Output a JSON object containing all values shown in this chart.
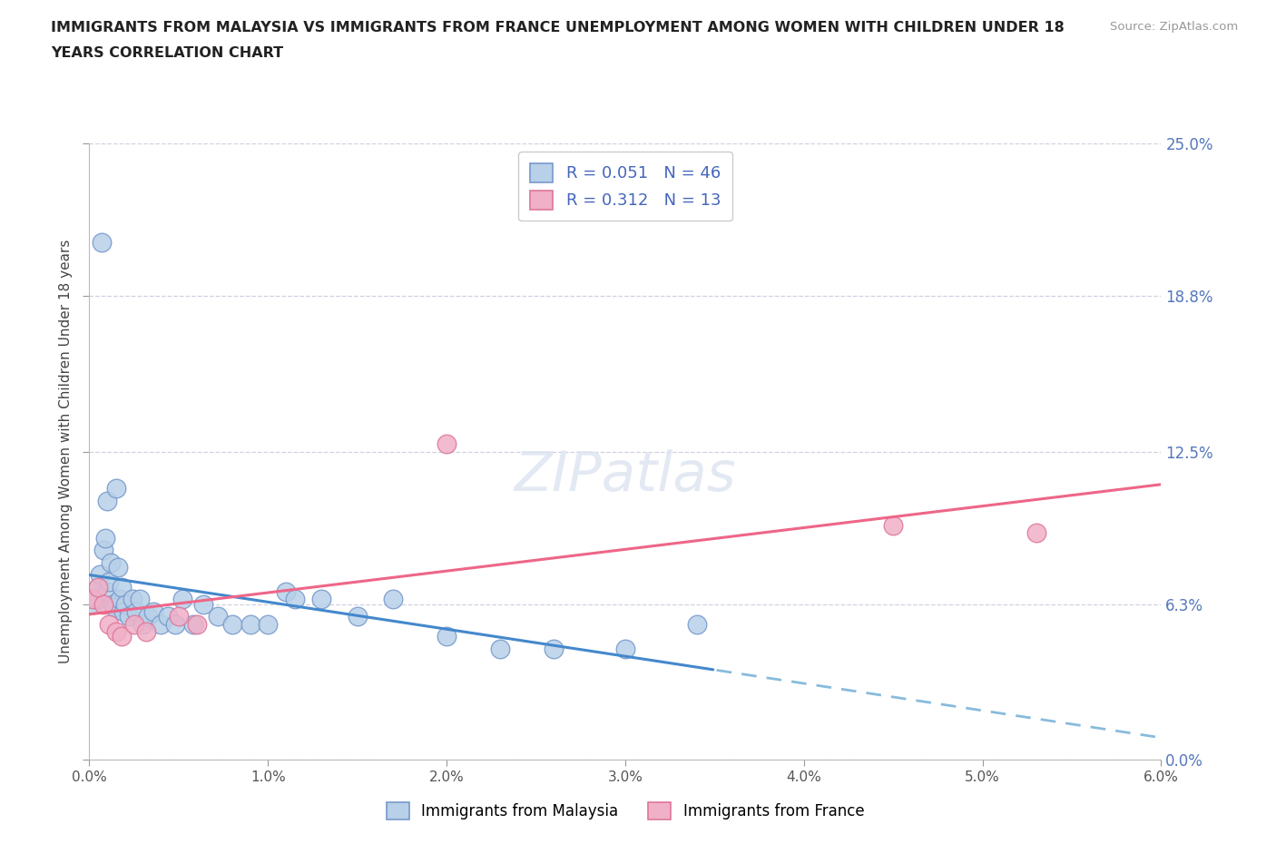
{
  "title_line1": "IMMIGRANTS FROM MALAYSIA VS IMMIGRANTS FROM FRANCE UNEMPLOYMENT AMONG WOMEN WITH CHILDREN UNDER 18 YEARS",
  "title_line2": "YEARS CORRELATION CHART",
  "source": "Source: ZipAtlas.com",
  "ylabel": "Unemployment Among Women with Children Under 18 years",
  "ytick_labels": [
    "0.0%",
    "6.3%",
    "12.5%",
    "18.8%",
    "25.0%"
  ],
  "ytick_values": [
    0.0,
    6.3,
    12.5,
    18.8,
    25.0
  ],
  "xtick_values": [
    0.0,
    1.0,
    2.0,
    3.0,
    4.0,
    5.0,
    6.0
  ],
  "xlim": [
    0.0,
    6.0
  ],
  "ylim": [
    0.0,
    25.0
  ],
  "malaysia_fill_color": "#b8d0e8",
  "malaysia_edge_color": "#7799cc",
  "france_fill_color": "#f0b0c8",
  "france_edge_color": "#dd7799",
  "malaysia_line_color": "#4488cc",
  "malaysia_line_dashed_color": "#88bbdd",
  "france_line_color": "#ee6688",
  "r_malaysia": 0.051,
  "n_malaysia": 46,
  "r_france": 0.312,
  "n_france": 13,
  "legend_color": "#4466bb",
  "watermark_text": "ZIPatlas",
  "bg_color": "#ffffff",
  "grid_color": "#ccccdd",
  "malaysia_x": [
    0.02,
    0.04,
    0.05,
    0.06,
    0.08,
    0.09,
    0.1,
    0.1,
    0.11,
    0.12,
    0.13,
    0.14,
    0.15,
    0.16,
    0.17,
    0.18,
    0.19,
    0.2,
    0.22,
    0.24,
    0.26,
    0.28,
    0.3,
    0.33,
    0.36,
    0.4,
    0.44,
    0.48,
    0.52,
    0.58,
    0.64,
    0.72,
    0.8,
    0.9,
    1.0,
    1.1,
    1.3,
    1.5,
    1.7,
    2.0,
    2.3,
    2.6,
    3.0,
    3.4,
    0.07,
    1.15
  ],
  "malaysia_y": [
    6.3,
    6.5,
    7.0,
    7.5,
    8.5,
    9.0,
    10.5,
    6.8,
    7.2,
    8.0,
    6.3,
    6.2,
    11.0,
    7.8,
    6.5,
    7.0,
    6.0,
    6.3,
    5.8,
    6.5,
    6.0,
    6.5,
    5.5,
    5.8,
    6.0,
    5.5,
    5.8,
    5.5,
    6.5,
    5.5,
    6.3,
    5.8,
    5.5,
    5.5,
    5.5,
    6.8,
    6.5,
    5.8,
    6.5,
    5.0,
    4.5,
    4.5,
    4.5,
    5.5,
    21.0,
    6.5
  ],
  "france_x": [
    0.02,
    0.05,
    0.08,
    0.11,
    0.15,
    0.18,
    0.25,
    0.32,
    0.5,
    0.6,
    2.0,
    4.5,
    5.3
  ],
  "france_y": [
    6.5,
    7.0,
    6.3,
    5.5,
    5.2,
    5.0,
    5.5,
    5.2,
    5.8,
    5.5,
    12.8,
    9.5,
    9.2
  ],
  "mal_line_solid_end": 3.5,
  "fra_line_end": 6.0
}
